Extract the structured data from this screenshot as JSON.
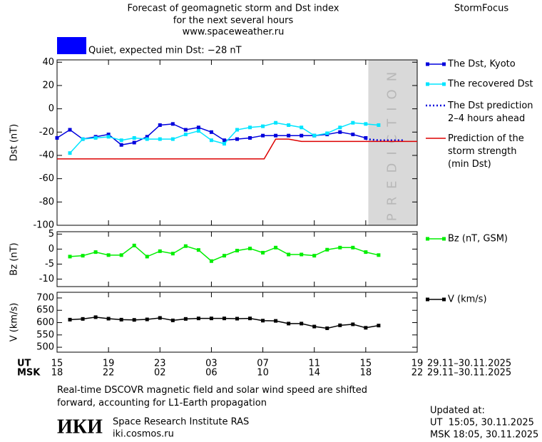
{
  "header": {
    "title": "Forecast of geomagnetic storm and Dst index",
    "subtitle": "for the next several hours",
    "url": "www.spaceweather.ru",
    "brand": "StormFocus",
    "status": "Quiet, expected min Dst: −28 nT",
    "status_color": "#0000ff"
  },
  "footer": {
    "note": "Real-time DSCOVR magnetic field and solar wind speed are shifted\nforward, accounting for L1-Earth propagation",
    "logo": "ИКИ",
    "institute": "Space Research Institute RAS",
    "site": "iki.cosmos.ru",
    "updated_title": "Updated at:",
    "updated_ut": "UT  15:05, 30.11.2025",
    "updated_msk": "MSK 18:05, 30.11.2025"
  },
  "chart_data": [
    {
      "type": "line",
      "ylabel": "Dst (nT)",
      "xlim": [
        0,
        28
      ],
      "ylim": [
        -100,
        42
      ],
      "yticks": [
        40,
        20,
        0,
        -20,
        -40,
        -60,
        -80,
        -100
      ],
      "prediction_zone": [
        24.2,
        28
      ],
      "prediction_label": "PREDICTION",
      "series": [
        {
          "name": "The Dst, Kyoto",
          "color": "#0000dd",
          "style": "markers",
          "x": [
            0,
            1,
            2,
            3,
            4,
            5,
            6,
            7,
            8,
            9,
            10,
            11,
            12,
            13,
            14,
            15,
            16,
            17,
            18,
            19,
            20,
            21,
            22,
            23,
            24
          ],
          "values": [
            -25,
            -18,
            -26,
            -24,
            -22,
            -31,
            -29,
            -24,
            -14,
            -13,
            -18,
            -16,
            -20,
            -27,
            -26,
            -25,
            -23,
            -23,
            -23,
            -23,
            -23,
            -22,
            -20,
            -22,
            -25
          ]
        },
        {
          "name": "The recovered Dst",
          "color": "#00e5ff",
          "style": "markers",
          "x": [
            1,
            2,
            3,
            4,
            5,
            6,
            7,
            8,
            9,
            10,
            11,
            12,
            13,
            14,
            15,
            16,
            17,
            18,
            19,
            20,
            21,
            22,
            23,
            24,
            25
          ],
          "values": [
            -38,
            -26,
            -25,
            -24,
            -27,
            -25,
            -26,
            -26,
            -26,
            -22,
            -19,
            -27,
            -30,
            -18,
            -16,
            -15,
            -12,
            -14,
            -16,
            -23,
            -21,
            -16,
            -12,
            -13,
            -14
          ]
        },
        {
          "name": "The Dst prediction\n2–4 hours ahead",
          "color": "#0000dd",
          "style": "dotted",
          "x": [
            24,
            25,
            26,
            27
          ],
          "values": [
            -26,
            -27,
            -27,
            -27
          ]
        },
        {
          "name": "Prediction of the\nstorm strength\n(min Dst)",
          "color": "#dd0000",
          "style": "line",
          "x": [
            0,
            16.1,
            17,
            18,
            19,
            28
          ],
          "values": [
            -43,
            -43,
            -26,
            -26,
            -28,
            -28
          ]
        }
      ]
    },
    {
      "type": "line",
      "ylabel": "Bz (nT)",
      "xlim": [
        0,
        28
      ],
      "ylim": [
        -12.5,
        5.8
      ],
      "yticks": [
        5,
        0,
        -5,
        -10
      ],
      "series": [
        {
          "name": "Bz (nT, GSM)",
          "color": "#00ee00",
          "style": "markers",
          "x": [
            1,
            2,
            3,
            4,
            5,
            6,
            7,
            8,
            9,
            10,
            11,
            12,
            13,
            14,
            15,
            16,
            17,
            18,
            19,
            20,
            21,
            22,
            23,
            24,
            25
          ],
          "values": [
            -2.5,
            -2.2,
            -1,
            -2,
            -2,
            1.2,
            -2.5,
            -0.7,
            -1.5,
            1,
            -0.3,
            -4,
            -2.2,
            -0.5,
            0.2,
            -1.2,
            0.5,
            -1.8,
            -1.8,
            -2.2,
            -0.2,
            0.5,
            0.5,
            -1,
            -2
          ]
        }
      ]
    },
    {
      "type": "line",
      "ylabel": "V (km/s)",
      "xlim": [
        0,
        28
      ],
      "ylim": [
        480,
        723
      ],
      "yticks": [
        700,
        650,
        600,
        550,
        500
      ],
      "xlabel": "UT",
      "x2label": "MSK",
      "date_range": "29.11–30.11.2025",
      "xticks": [
        {
          "value": 0,
          "label": "15"
        },
        {
          "value": 4,
          "label": "19"
        },
        {
          "value": 8,
          "label": "23"
        },
        {
          "value": 12,
          "label": "03"
        },
        {
          "value": 16,
          "label": "07"
        },
        {
          "value": 20,
          "label": "11"
        },
        {
          "value": 24,
          "label": "15"
        },
        {
          "value": 28,
          "label": "19"
        }
      ],
      "x2ticks": [
        {
          "value": 0,
          "label": "18"
        },
        {
          "value": 4,
          "label": "22"
        },
        {
          "value": 8,
          "label": "02"
        },
        {
          "value": 12,
          "label": "06"
        },
        {
          "value": 16,
          "label": "10"
        },
        {
          "value": 20,
          "label": "14"
        },
        {
          "value": 24,
          "label": "18"
        },
        {
          "value": 28,
          "label": "22"
        }
      ],
      "series": [
        {
          "name": "V (km/s)",
          "color": "#000000",
          "style": "markers",
          "x": [
            1,
            2,
            3,
            4,
            5,
            6,
            7,
            8,
            9,
            10,
            11,
            12,
            13,
            14,
            15,
            16,
            17,
            18,
            19,
            20,
            21,
            22,
            23,
            24,
            25
          ],
          "values": [
            612,
            615,
            622,
            616,
            612,
            611,
            613,
            619,
            609,
            615,
            617,
            617,
            617,
            616,
            617,
            608,
            607,
            596,
            596,
            584,
            577,
            589,
            593,
            579,
            588
          ]
        }
      ]
    }
  ]
}
